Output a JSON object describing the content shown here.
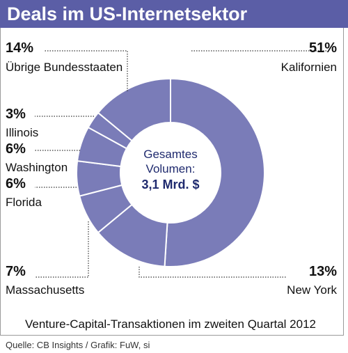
{
  "title": "Deals im US-Internetsektor",
  "subtitle": "Venture-Capital-Transaktionen im zweiten Quartal 2012",
  "source": "Quelle: CB Insights / Grafik: FuW, si",
  "center_text": {
    "line1": "Gesamtes",
    "line2": "Volumen:",
    "value": "3,1 Mrd. $"
  },
  "colors": {
    "slice": "#7a7cb8",
    "slice_stroke": "#ffffff",
    "title_bar": "#5b5ea6",
    "center_text": "#1f2a6e"
  },
  "chart_data": {
    "type": "pie",
    "donut": true,
    "title": "Deals im US-Internetsektor",
    "subtitle": "Venture-Capital-Transaktionen im zweiten Quartal 2012",
    "unit": "%",
    "total_label": "3,1 Mrd. $",
    "slices": [
      {
        "label": "Kalifornien",
        "value": 51,
        "value_label": "51%"
      },
      {
        "label": "New York",
        "value": 13,
        "value_label": "13%"
      },
      {
        "label": "Massachusetts",
        "value": 7,
        "value_label": "7%"
      },
      {
        "label": "Florida",
        "value": 6,
        "value_label": "6%"
      },
      {
        "label": "Washington",
        "value": 6,
        "value_label": "6%"
      },
      {
        "label": "Illinois",
        "value": 3,
        "value_label": "3%"
      },
      {
        "label": "Übrige Bundesstaaten",
        "value": 14,
        "value_label": "14%"
      }
    ]
  }
}
